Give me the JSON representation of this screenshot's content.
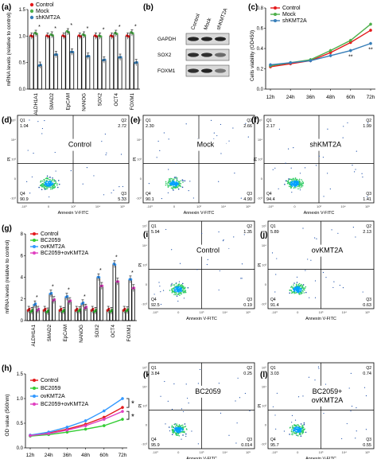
{
  "figure": {
    "panel_a": {
      "letter": "(a)",
      "legend": [
        "Control",
        "Mock",
        "shKMT2A"
      ],
      "ylabel": "mRNA levels (relative to control)",
      "yticks": [
        "0.0",
        "0.5",
        "1.0",
        "1.5"
      ]
    },
    "panel_b": {
      "letter": "(b)",
      "lanes": [
        "Control",
        "Mock",
        "shKMT2A"
      ],
      "rows": [
        "GAPDH",
        "SOX2",
        "FOXM1"
      ]
    },
    "panel_c": {
      "letter": "(c)",
      "legend": [
        "Control",
        "Mock",
        "shKMT2A"
      ],
      "ylabel": "Cells viability (OD450)",
      "yticks": [
        "0.0",
        "0.2",
        "0.4",
        "0.6",
        "0.8"
      ],
      "sig": "**"
    },
    "panel_g": {
      "letter": "(g)",
      "legend": [
        "Control",
        "BC2059",
        "ovKMT2A",
        "BC2059+ovKMT2A"
      ],
      "ylabel": "mRNA levels (relative to control)",
      "yticks": [
        "0",
        "2",
        "4",
        "6",
        "8"
      ],
      "sig": "*"
    },
    "panel_h": {
      "letter": "(h)",
      "legend": [
        "Control",
        "BC2059",
        "ovKMT2A",
        "BC2059+ovKMT2A"
      ],
      "ylabel": "OD value (560nm)",
      "yticks": [
        "0.0",
        "0.5",
        "1.0",
        "1.5"
      ],
      "sig": "*"
    },
    "flow_axis": {
      "x": "Annexin V-FITC",
      "y": "PI",
      "xticks": [
        "-10³",
        "0",
        "10³",
        "10⁴",
        "10⁵"
      ],
      "yticks": [
        "-10³",
        "0",
        "10³",
        "10⁴",
        "10⁵"
      ]
    },
    "flow_panels": [
      {
        "letter": "(d)",
        "label": "Control",
        "q1": "1.04",
        "q2": "2.72",
        "q3": "5.33",
        "q4": "90.9"
      },
      {
        "letter": "(e)",
        "label": "Mock",
        "q1": "2.30",
        "q2": "2.66",
        "q3": "4.90",
        "q4": "90.1"
      },
      {
        "letter": "(f)",
        "label": "shKMT2A",
        "q1": "2.17",
        "q2": "1.99",
        "q3": "1.41",
        "q4": "94.4"
      },
      {
        "letter": "(i)",
        "label": "Control",
        "q1": "5.94",
        "q2": "1.35",
        "q3": "0.19",
        "q4": "92.5"
      },
      {
        "letter": "(j)",
        "label": "ovKMT2A",
        "q1": "5.89",
        "q2": "2.13",
        "q3": "0.63",
        "q4": "91.4"
      },
      {
        "letter": "(k)",
        "label": "BC2059",
        "q1": "3.84",
        "q2": "0.25",
        "q3": "0.014",
        "q4": "95.9"
      },
      {
        "letter": "(l)",
        "label": "BC2059+ ovKMT2A",
        "q1": "3.03",
        "q2": "0.74",
        "q3": "0.55",
        "q4": "95.7"
      }
    ]
  },
  "colors": {
    "control": "#e41a1c",
    "mock": "#4daf4a",
    "shkmt2a": "#377eb8",
    "bc2059": "#33cc33",
    "ovkmt2a": "#3399ff",
    "combo": "#e040c0",
    "ctrl_h": "#e41a1c"
  },
  "chart_data": [
    {
      "type": "bar",
      "panel": "(a)",
      "title": "",
      "xlabel": "",
      "ylabel": "mRNA levels (relative to control)",
      "ylim": [
        0,
        1.5
      ],
      "categories": [
        "ALDH1A1",
        "SMAD2",
        "EpCAM",
        "NANOG",
        "SOX2",
        "OCT4",
        "FOXM1"
      ],
      "series": [
        {
          "name": "Control",
          "values": [
            1.0,
            1.0,
            1.0,
            1.0,
            1.0,
            1.0,
            1.0
          ]
        },
        {
          "name": "Mock",
          "values": [
            1.05,
            1.02,
            1.08,
            1.02,
            1.0,
            1.05,
            1.06
          ]
        },
        {
          "name": "shKMT2A",
          "values": [
            0.45,
            0.65,
            0.7,
            0.62,
            0.55,
            0.6,
            0.5
          ]
        }
      ],
      "annotations": [
        "*",
        "*",
        "*",
        "*",
        "*",
        "*",
        "*"
      ]
    },
    {
      "type": "line",
      "panel": "(c)",
      "title": "",
      "xlabel": "",
      "ylabel": "Cells viability (OD450)",
      "ylim": [
        0.0,
        0.8
      ],
      "x": [
        "12h",
        "24h",
        "36h",
        "48h",
        "60h",
        "72h"
      ],
      "series": [
        {
          "name": "Control",
          "values": [
            0.22,
            0.25,
            0.28,
            0.36,
            0.46,
            0.58
          ]
        },
        {
          "name": "Mock",
          "values": [
            0.23,
            0.26,
            0.29,
            0.38,
            0.48,
            0.64
          ]
        },
        {
          "name": "shKMT2A",
          "values": [
            0.24,
            0.26,
            0.28,
            0.33,
            0.38,
            0.45
          ]
        }
      ],
      "annotations": [
        "**",
        "**"
      ]
    },
    {
      "type": "bar",
      "panel": "(g)",
      "title": "",
      "xlabel": "",
      "ylabel": "mRNA levels (relative to control)",
      "ylim": [
        0,
        8
      ],
      "categories": [
        "ALDH1A1",
        "SMAD2",
        "EpCAM",
        "NANOG",
        "SOX2",
        "OCT4",
        "FOXM1"
      ],
      "series": [
        {
          "name": "Control",
          "values": [
            1.0,
            1.0,
            1.0,
            1.0,
            1.0,
            1.0,
            1.0
          ]
        },
        {
          "name": "BC2059",
          "values": [
            0.9,
            0.85,
            0.9,
            0.95,
            0.9,
            0.9,
            0.95
          ]
        },
        {
          "name": "ovKMT2A",
          "values": [
            1.5,
            2.5,
            2.2,
            1.6,
            4.0,
            5.2,
            3.8
          ]
        },
        {
          "name": "BC2059+ovKMT2A",
          "values": [
            1.0,
            1.9,
            1.8,
            1.2,
            3.2,
            3.6,
            3.0
          ]
        }
      ],
      "annotations": [
        "*",
        "*",
        "*",
        "*",
        "*",
        "*",
        "*"
      ]
    },
    {
      "type": "line",
      "panel": "(h)",
      "title": "",
      "xlabel": "",
      "ylabel": "OD value (560nm)",
      "ylim": [
        0.0,
        1.5
      ],
      "x": [
        "12h",
        "24h",
        "36h",
        "48h",
        "60h",
        "72h"
      ],
      "series": [
        {
          "name": "Control",
          "values": [
            0.25,
            0.3,
            0.38,
            0.48,
            0.62,
            0.82
          ]
        },
        {
          "name": "BC2059",
          "values": [
            0.24,
            0.27,
            0.32,
            0.38,
            0.45,
            0.58
          ]
        },
        {
          "name": "ovKMT2A",
          "values": [
            0.26,
            0.32,
            0.42,
            0.55,
            0.75,
            1.0
          ]
        },
        {
          "name": "BC2059+ovKMT2A",
          "values": [
            0.25,
            0.29,
            0.36,
            0.45,
            0.58,
            0.74
          ]
        }
      ],
      "annotations": [
        "*",
        "*"
      ]
    }
  ]
}
